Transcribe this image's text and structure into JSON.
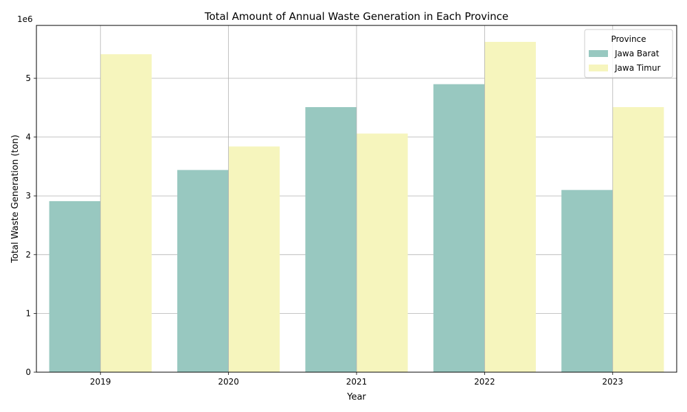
{
  "chart_data": {
    "type": "bar",
    "title": "Total Amount of Annual Waste Generation in Each Province",
    "xlabel": "Year",
    "ylabel": "Total Waste Generation (ton)",
    "y_offset_label": "1e6",
    "categories": [
      "2019",
      "2020",
      "2021",
      "2022",
      "2023"
    ],
    "ylim": [
      0,
      5900000
    ],
    "yticks": [
      0,
      1,
      2,
      3,
      4,
      5
    ],
    "grid": true,
    "legend": {
      "title": "Province",
      "position": "upper-right"
    },
    "series": [
      {
        "name": "Jawa Barat",
        "color": "#98c8c0",
        "values": [
          2910000,
          3440000,
          4510000,
          4900000,
          3100000
        ]
      },
      {
        "name": "Jawa Timur",
        "color": "#f6f5bd",
        "values": [
          5410000,
          3840000,
          4060000,
          5620000,
          4510000
        ]
      }
    ]
  }
}
